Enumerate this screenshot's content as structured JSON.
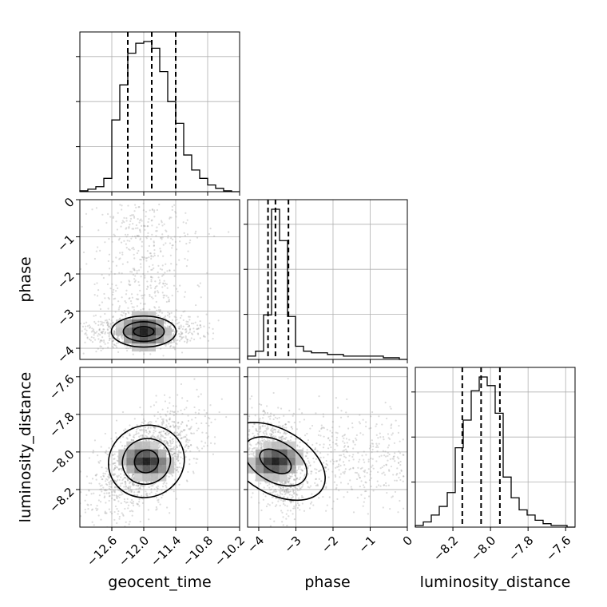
{
  "chart_data": {
    "type": "corner",
    "parameters": [
      {
        "name": "geocent_time",
        "label": "geocent_time",
        "range": [
          -13.2,
          -10.2
        ],
        "ticks": [
          -12.6,
          -12.0,
          -11.4,
          -10.8,
          -10.2
        ],
        "tick_labels": [
          "−12.6",
          "−12.0",
          "−11.4",
          "−10.8",
          "−10.2"
        ],
        "quantiles": [
          -12.3,
          -11.85,
          -11.4
        ]
      },
      {
        "name": "phase",
        "label": "phase",
        "range": [
          -4.3,
          0.0
        ],
        "ticks": [
          -4,
          -3,
          -2,
          -1,
          0
        ],
        "tick_labels": [
          "−4",
          "−3",
          "−2",
          "−1",
          "0"
        ],
        "quantiles": [
          -3.75,
          -3.55,
          -3.2
        ]
      },
      {
        "name": "luminosity_distance",
        "label": "luminosity_distance",
        "range": [
          -8.4,
          -7.55
        ],
        "ticks": [
          -8.2,
          -8.0,
          -7.8,
          -7.6
        ],
        "tick_labels": [
          "−8.2",
          "−8.0",
          "−7.8",
          "−7.6"
        ],
        "quantiles": [
          -8.15,
          -8.05,
          -7.95
        ]
      }
    ],
    "histograms": [
      {
        "param": "geocent_time",
        "bin_edges": [
          -13.2,
          -13.05,
          -12.9,
          -12.75,
          -12.6,
          -12.45,
          -12.3,
          -12.15,
          -12.0,
          -11.85,
          -11.7,
          -11.55,
          -11.4,
          -11.25,
          -11.1,
          -10.95,
          -10.8,
          -10.65,
          -10.5,
          -10.35,
          -10.2
        ],
        "counts": [
          0.5,
          1.5,
          3,
          8,
          43,
          64,
          83,
          89,
          90,
          86,
          72,
          54,
          41,
          22,
          13,
          8,
          4,
          2,
          0.5,
          0
        ]
      },
      {
        "param": "phase",
        "bin_edges": [
          -4.3,
          -4.085,
          -3.87,
          -3.655,
          -3.44,
          -3.225,
          -3.01,
          -2.795,
          -2.58,
          -2.365,
          -2.15,
          -1.935,
          -1.72,
          -1.505,
          -1.29,
          -1.075,
          -0.86,
          -0.645,
          -0.43,
          -0.215,
          0.0
        ],
        "counts": [
          2,
          5,
          27,
          91,
          72,
          26,
          8,
          5,
          4,
          4,
          3,
          3,
          2,
          2,
          2,
          2,
          2,
          1,
          1,
          0
        ]
      },
      {
        "param": "luminosity_distance",
        "bin_edges": [
          -8.4,
          -8.3575,
          -8.315,
          -8.2725,
          -8.23,
          -8.1875,
          -8.145,
          -8.1025,
          -8.06,
          -8.0175,
          -7.975,
          -7.9325,
          -7.89,
          -7.8475,
          -7.805,
          -7.7625,
          -7.72,
          -7.6775,
          -7.635,
          -7.5925,
          -7.55
        ],
        "counts": [
          1,
          3,
          7,
          12,
          20,
          46,
          62,
          79,
          87,
          82,
          66,
          29,
          17,
          10,
          7,
          4,
          2,
          1,
          1,
          0
        ]
      }
    ],
    "density_2d": [
      {
        "x": "geocent_time",
        "y": "phase",
        "peak": [
          -12.0,
          -3.55
        ],
        "spread_x": 0.32,
        "spread_y": 0.22,
        "correlation": 0.05
      },
      {
        "x": "geocent_time",
        "y": "luminosity_distance",
        "peak": [
          -11.95,
          -8.05
        ],
        "spread_x": 0.38,
        "spread_y": 0.1,
        "correlation": 0.55
      },
      {
        "x": "phase",
        "y": "luminosity_distance",
        "peak": [
          -3.55,
          -8.05
        ],
        "spread_x": 0.35,
        "spread_y": 0.1,
        "correlation": -0.45
      }
    ],
    "grid": true,
    "colors": {
      "line": "#000000",
      "grid": "#b0b0b0",
      "points": "#9a9a9a",
      "frame": "#000000"
    }
  }
}
